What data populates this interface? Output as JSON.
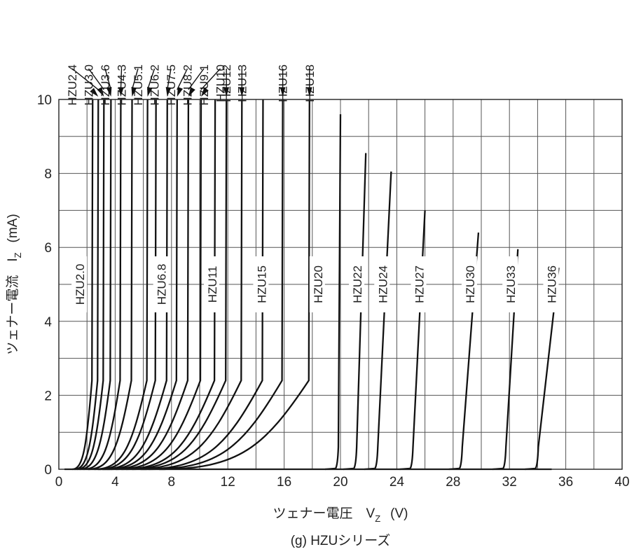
{
  "chart_data": {
    "type": "line",
    "xlabel": "ツェナー電圧　V",
    "xlabel_sub": "Z",
    "xlabel_unit": "(V)",
    "ylabel": "ツェナー電流　I",
    "ylabel_sub": "Z",
    "ylabel_unit": "(mA)",
    "caption": "(g) HZUシリーズ",
    "xlim": [
      0,
      40
    ],
    "ylim": [
      0,
      10
    ],
    "x_ticks": [
      "0",
      "4",
      "8",
      "12",
      "16",
      "20",
      "24",
      "28",
      "32",
      "36",
      "40"
    ],
    "y_ticks": [
      "0",
      "2",
      "4",
      "6",
      "8",
      "10"
    ],
    "grid": true,
    "series": [
      {
        "name": "HZU2.0",
        "vz_at_10mA": 2.4
      },
      {
        "name": "HZU2.4",
        "vz_at_10mA": 2.8
      },
      {
        "name": "HZU3.0",
        "vz_at_10mA": 3.2
      },
      {
        "name": "HZU3.6",
        "vz_at_10mA": 3.7
      },
      {
        "name": "HZU4.3",
        "vz_at_10mA": 4.4
      },
      {
        "name": "HZU5.1",
        "vz_at_10mA": 5.2
      },
      {
        "name": "HZU6.2",
        "vz_at_10mA": 6.3
      },
      {
        "name": "HZU6.8",
        "vz_at_10mA": 6.9
      },
      {
        "name": "HZU7.5",
        "vz_at_10mA": 7.7
      },
      {
        "name": "HZU8.2",
        "vz_at_10mA": 8.4
      },
      {
        "name": "HZU9.1",
        "vz_at_10mA": 9.2
      },
      {
        "name": "HZU10",
        "vz_at_10mA": 10.1
      },
      {
        "name": "HZU11",
        "vz_at_10mA": 11.1
      },
      {
        "name": "HZU12",
        "vz_at_10mA": 11.9
      },
      {
        "name": "HZU13",
        "vz_at_10mA": 13.0
      },
      {
        "name": "HZU15",
        "vz_at_10mA": 14.5
      },
      {
        "name": "HZU16",
        "vz_at_10mA": 15.9
      },
      {
        "name": "HZU18",
        "vz_at_10mA": 17.8
      },
      {
        "name": "HZU20",
        "x_start": 19.8,
        "x_end": 20.0,
        "i_max": 9.6
      },
      {
        "name": "HZU22",
        "x_start": 21.1,
        "x_end": 21.8,
        "i_max": 8.55
      },
      {
        "name": "HZU24",
        "x_start": 22.6,
        "x_end": 23.6,
        "i_max": 8.05
      },
      {
        "name": "HZU27",
        "x_start": 25.1,
        "x_end": 26.0,
        "i_max": 7.0
      },
      {
        "name": "HZU30",
        "x_start": 28.6,
        "x_end": 29.8,
        "i_max": 6.4
      },
      {
        "name": "HZU33",
        "x_start": 31.7,
        "x_end": 32.6,
        "i_max": 5.95
      },
      {
        "name": "HZU36",
        "x_start": 34.0,
        "x_end": 35.5,
        "i_max": 5.45
      }
    ],
    "top_labels": [
      {
        "name": "HZU2.4",
        "vz": 2.8
      },
      {
        "name": "HZU3.0",
        "vz": 3.2
      },
      {
        "name": "HZU3.6",
        "vz": 3.7
      },
      {
        "name": "HZU4.3",
        "vz": 4.4
      },
      {
        "name": "HZU5.1",
        "vz": 5.2
      },
      {
        "name": "HZU6.2",
        "vz": 6.3
      },
      {
        "name": "HZU7.5",
        "vz": 7.7
      },
      {
        "name": "HZU8.2",
        "vz": 8.4
      },
      {
        "name": "HZU9.1",
        "vz": 9.2
      },
      {
        "name": "HZU10",
        "vz": 10.1
      },
      {
        "name": "HZU12",
        "vz": 11.9
      },
      {
        "name": "HZU13",
        "vz": 13.0
      },
      {
        "name": "HZU16",
        "vz": 15.9
      },
      {
        "name": "HZU18",
        "vz": 17.8
      }
    ],
    "inline_labels": [
      {
        "name": "HZU2.0",
        "x": 1.1,
        "y": 5.0
      },
      {
        "name": "HZU6.8",
        "x": 6.9,
        "y": 5.0
      },
      {
        "name": "HZU11",
        "x": 10.5,
        "y": 5.0
      },
      {
        "name": "HZU15",
        "x": 14.0,
        "y": 5.0
      },
      {
        "name": "HZU20",
        "x": 18.0,
        "y": 5.0
      },
      {
        "name": "HZU22",
        "x": 20.8,
        "y": 5.0
      },
      {
        "name": "HZU24",
        "x": 22.6,
        "y": 5.0
      },
      {
        "name": "HZU27",
        "x": 25.2,
        "y": 5.0
      },
      {
        "name": "HZU30",
        "x": 28.8,
        "y": 5.0
      },
      {
        "name": "HZU33",
        "x": 31.7,
        "y": 5.0
      },
      {
        "name": "HZU36",
        "x": 34.6,
        "y": 5.0
      }
    ]
  }
}
